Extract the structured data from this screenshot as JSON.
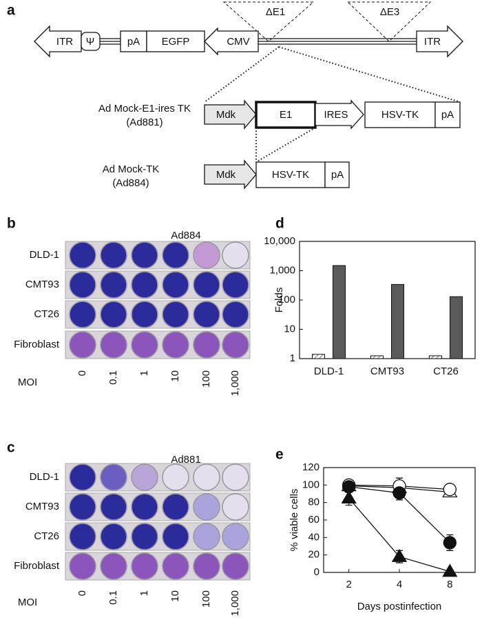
{
  "panel_a": {
    "label": "a",
    "deletions": [
      "ΔE1",
      "ΔE3"
    ],
    "vector": {
      "itr_left": "ITR",
      "psi": "Ψ",
      "pa": "pA",
      "egfp": "EGFP",
      "cmv": "CMV",
      "itr_right": "ITR"
    },
    "constructs": [
      {
        "name": "Ad Mock-E1-ires TK",
        "id": "(Ad881)",
        "elements": [
          "Mdk",
          "E1",
          "IRES",
          "HSV-TK",
          "pA"
        ]
      },
      {
        "name": "Ad Mock-TK",
        "id": "(Ad884)",
        "elements": [
          "Mdk",
          "HSV-TK",
          "pA"
        ]
      }
    ]
  },
  "panel_b": {
    "label": "b",
    "title": "Ad884",
    "rows": [
      "DLD-1",
      "CMT93",
      "CT26",
      "Fibroblast"
    ],
    "moi_label": "MOI",
    "moi": [
      "0",
      "0.1",
      "1",
      "10",
      "100",
      "1,000"
    ]
  },
  "panel_c": {
    "label": "c",
    "title": "Ad881",
    "rows": [
      "DLD-1",
      "CMT93",
      "CT26",
      "Fibroblast"
    ],
    "moi_label": "MOI",
    "moi": [
      "0",
      "0.1",
      "1",
      "10",
      "100",
      "1,000"
    ]
  },
  "chart_data": [
    {
      "label": "d",
      "type": "bar",
      "ylabel": "Folds",
      "categories": [
        "DLD-1",
        "CMT93",
        "CT26"
      ],
      "log_scale": true,
      "ylim": [
        1,
        10000
      ],
      "yticks": [
        1,
        10,
        100,
        {
          "value": 1000,
          "label": "1,000"
        },
        {
          "value": 10000,
          "label": "10,000"
        }
      ],
      "series": [
        {
          "color": "#555555",
          "fill": "hatch",
          "values": [
            1.4,
            1.25,
            1.25
          ]
        },
        {
          "color": "#5a5a5a",
          "fill": "solid",
          "values": [
            1500,
            340,
            130
          ]
        }
      ]
    },
    {
      "label": "e",
      "type": "line",
      "ylabel": "% viable cells",
      "xlabel": "Days postinfection",
      "categories": [
        "2",
        "4",
        "8"
      ],
      "ylim": [
        0,
        120
      ],
      "yticks": [
        0,
        20,
        40,
        60,
        80,
        100,
        120
      ],
      "series": [
        {
          "color": "#111111",
          "marker": "triangle",
          "filled": false,
          "values": [
            99,
            97,
            92
          ],
          "errors": [
            null,
            null,
            null
          ]
        },
        {
          "color": "#111111",
          "marker": "circle",
          "filled": false,
          "values": [
            100,
            99,
            95
          ],
          "errors": [
            null,
            9,
            null
          ]
        },
        {
          "color": "#111111",
          "marker": "circle",
          "filled": true,
          "values": [
            98,
            91,
            34
          ],
          "errors": [
            null,
            8,
            9
          ]
        },
        {
          "color": "#111111",
          "marker": "triangle",
          "filled": true,
          "values": [
            85,
            18,
            1
          ],
          "errors": [
            8,
            7,
            null
          ]
        }
      ]
    }
  ]
}
